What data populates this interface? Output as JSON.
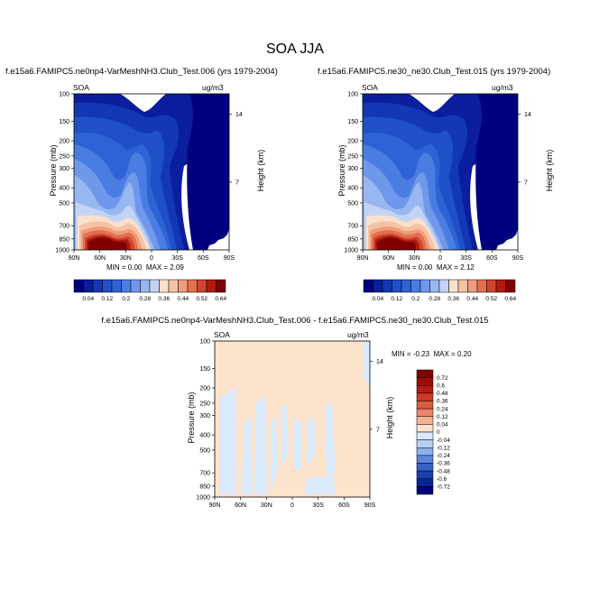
{
  "figure": {
    "title": "SOA JJA",
    "units": "ug/m3",
    "panels": [
      {
        "id": "p1",
        "subtitle": "f.e15a6.FAMIPC5.ne0np4-VarMeshNH3.Club_Test.006 (yrs 1979-2004)",
        "left_label": "SOA",
        "right_label": "ug/m3",
        "min_label": "MIN =",
        "min_value": "0.00",
        "max_label": "MAX =",
        "max_value": "2.09"
      },
      {
        "id": "p2",
        "subtitle": "f.e15a6.FAMIPC5.ne30_ne30.Club_Test.015 (yrs 1979-2004)",
        "left_label": "SOA",
        "right_label": "ug/m3",
        "min_label": "MIN =",
        "min_value": "0.00",
        "max_label": "MAX =",
        "max_value": "2.12"
      },
      {
        "id": "p3",
        "subtitle": "f.e15a6.FAMIPC5.ne0np4-VarMeshNH3.Club_Test.006 - f.e15a6.FAMIPC5.ne30_ne30.Club_Test.015",
        "left_label": "SOA",
        "right_label": "ug/m3",
        "min_label": "MIN =",
        "min_value": "-0.23",
        "max_label": "MAX =",
        "max_value": "0.20"
      }
    ]
  },
  "chart_data": [
    {
      "type": "heatmap",
      "title": "f.e15a6.FAMIPC5.ne0np4-VarMeshNH3.Club_Test.006 (yrs 1979-2004)",
      "field": "SOA",
      "units": "ug/m3",
      "xlabel": "",
      "ylabel": "Pressure (mb)",
      "y2label": "Height (km)",
      "x_ticks": [
        "90N",
        "60N",
        "30N",
        "0",
        "30S",
        "60S",
        "90S"
      ],
      "y_ticks": [
        "100",
        "150",
        "200",
        "250",
        "300",
        "400",
        "500",
        "700",
        "850",
        "1000"
      ],
      "y2_ticks": [
        "14",
        "7"
      ],
      "min": 0.0,
      "max": 2.09,
      "colorbar_labels": [
        "0.04",
        "0.12",
        "0.2",
        "0.28",
        "0.36",
        "0.44",
        "0.52",
        "0.64"
      ],
      "colorbar_levels": [
        0.04,
        0.08,
        0.12,
        0.16,
        0.2,
        0.24,
        0.28,
        0.32,
        0.36,
        0.4,
        0.44,
        0.48,
        0.52,
        0.56,
        0.64
      ]
    },
    {
      "type": "heatmap",
      "title": "f.e15a6.FAMIPC5.ne30_ne30.Club_Test.015 (yrs 1979-2004)",
      "field": "SOA",
      "units": "ug/m3",
      "xlabel": "",
      "ylabel": "Pressure (mb)",
      "y2label": "Height (km)",
      "x_ticks": [
        "90N",
        "60N",
        "30N",
        "0",
        "30S",
        "60S",
        "90S"
      ],
      "y_ticks": [
        "100",
        "150",
        "200",
        "250",
        "300",
        "400",
        "500",
        "700",
        "850",
        "1000"
      ],
      "y2_ticks": [
        "14",
        "7"
      ],
      "min": 0.0,
      "max": 2.12,
      "colorbar_labels": [
        "0.04",
        "0.12",
        "0.2",
        "0.28",
        "0.36",
        "0.44",
        "0.52",
        "0.64"
      ],
      "colorbar_levels": [
        0.04,
        0.08,
        0.12,
        0.16,
        0.2,
        0.24,
        0.28,
        0.32,
        0.36,
        0.4,
        0.44,
        0.48,
        0.52,
        0.56,
        0.64
      ]
    },
    {
      "type": "heatmap",
      "title": "f.e15a6.FAMIPC5.ne0np4-VarMeshNH3.Club_Test.006 - f.e15a6.FAMIPC5.ne30_ne30.Club_Test.015",
      "field": "SOA",
      "units": "ug/m3",
      "xlabel": "",
      "ylabel": "Pressure (mb)",
      "y2label": "Height (km)",
      "x_ticks": [
        "90N",
        "60N",
        "30N",
        "0",
        "30S",
        "60S",
        "90S"
      ],
      "y_ticks": [
        "100",
        "150",
        "200",
        "250",
        "300",
        "400",
        "500",
        "700",
        "850",
        "1000"
      ],
      "y2_ticks": [
        "14",
        "7"
      ],
      "min": -0.23,
      "max": 0.2,
      "colorbar_labels": [
        "0.72",
        "0.6",
        "0.48",
        "0.36",
        "0.24",
        "0.12",
        "0.04",
        "0",
        "-0.04",
        "-0.12",
        "-0.24",
        "-0.36",
        "-0.48",
        "-0.6",
        "-0.72"
      ],
      "colorbar_levels": [
        0.72,
        0.6,
        0.48,
        0.36,
        0.24,
        0.12,
        0.04,
        0,
        -0.04,
        -0.12,
        -0.24,
        -0.36,
        -0.48,
        -0.6,
        -0.72
      ]
    }
  ],
  "colors": {
    "seq_palette": [
      "#00007f",
      "#0a1e9e",
      "#1238b4",
      "#1f50c8",
      "#2e63d6",
      "#4a7de2",
      "#6f98ea",
      "#98b6f0",
      "#c2d3f6",
      "#fbe0cc",
      "#f6c2a4",
      "#ee9c7c",
      "#e2704f",
      "#cf4530",
      "#b11a10",
      "#820000"
    ],
    "div_palette": [
      "#820000",
      "#9e0b06",
      "#b81a10",
      "#cc3a26",
      "#dc5c3f",
      "#ea8668",
      "#f4b090",
      "#fce3cc",
      "#d9eafc",
      "#b6d0f4",
      "#8cb0ec",
      "#5c86dc",
      "#3562ca",
      "#1a40b0",
      "#0a2494",
      "#00007a"
    ],
    "diff_positive_fill": "#fce3cc",
    "diff_negative_fill": "#d9eafc"
  }
}
